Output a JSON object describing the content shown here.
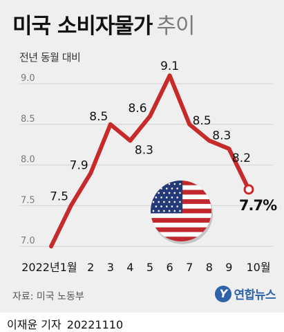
{
  "header": {
    "title": "미국 소비자물가",
    "title_suffix": "추이",
    "subtitle": "전년 동월 대비"
  },
  "footer": {
    "source": "자료: 미국 노동부",
    "agency_mark": "Y",
    "agency": "연합뉴스",
    "reporter": "이재윤 기자",
    "date": "20221110"
  },
  "chart_data": {
    "type": "line",
    "title": "미국 소비자물가 추이",
    "subtitle": "전년 동월 대비",
    "categories": [
      "2022년1월",
      "2",
      "3",
      "4",
      "5",
      "6",
      "7",
      "8",
      "9",
      "10월"
    ],
    "series": [
      {
        "values": [
          7.5,
          7.9,
          8.5,
          8.3,
          8.6,
          9.1,
          8.5,
          8.3,
          8.2,
          7.7
        ],
        "data_labels": [
          "7.5",
          "7.9",
          "8.5",
          "8.3",
          "8.6",
          "9.1",
          "8.5",
          "8.3",
          "8.2",
          "7.7%"
        ]
      }
    ],
    "start_value": 7.0,
    "ylim": [
      7.0,
      9.1
    ],
    "yticks": [
      "7.0",
      "7.5",
      "8.0",
      "8.5",
      "9.0"
    ],
    "grid": true,
    "legend": "none",
    "line_color": "#c62a2a",
    "decoration": "us-flag-icon"
  }
}
